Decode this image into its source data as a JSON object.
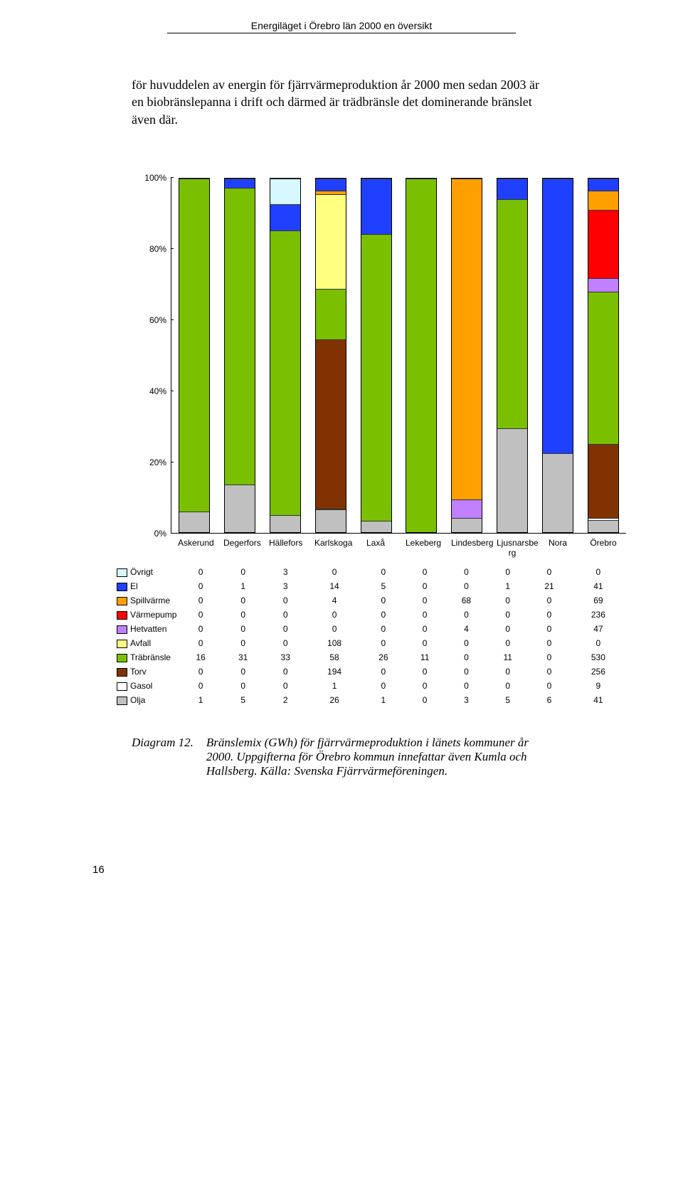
{
  "header": "Energiläget i Örebro län 2000 en översikt",
  "body_text": "för huvuddelen av energin för fjärrvärmeproduktion år 2000 men sedan 2003 är en biobränslepanna i drift och därmed är trädbränsle det dominerande bränslet även där.",
  "caption_lead": "Diagram 12.",
  "caption_text": "Bränslemix (GWh) för fjärrvärmeproduktion i länets kommuner år 2000. Uppgifterna för Örebro kommun innefattar även Kumla och Hallsberg. Källa: Svenska Fjärrvärmeföreningen.",
  "page_number": "16",
  "chart": {
    "type": "stacked-bar",
    "y_ticks": [
      "0%",
      "20%",
      "40%",
      "60%",
      "80%",
      "100%"
    ],
    "categories": [
      "Askerund",
      "Degerfors",
      "Hällefors",
      "Karlskoga",
      "Laxå",
      "Lekeberg",
      "Lindesberg",
      "Ljusnarsbe rg",
      "Nora",
      "Örebro"
    ],
    "series": [
      {
        "name": "Olja",
        "color": "#c0c0c0",
        "data": [
          1,
          5,
          2,
          26,
          1,
          0,
          3,
          5,
          6,
          41
        ]
      },
      {
        "name": "Gasol",
        "color": "#ffffff",
        "data": [
          0,
          0,
          0,
          1,
          0,
          0,
          0,
          0,
          0,
          9
        ]
      },
      {
        "name": "Torv",
        "color": "#803300",
        "data": [
          0,
          0,
          0,
          194,
          0,
          0,
          0,
          0,
          0,
          256
        ]
      },
      {
        "name": "Träbränsle",
        "color": "#7ac000",
        "data": [
          16,
          31,
          33,
          58,
          26,
          11,
          0,
          11,
          0,
          530
        ]
      },
      {
        "name": "Avfall",
        "color": "#ffff80",
        "data": [
          0,
          0,
          0,
          108,
          0,
          0,
          0,
          0,
          0,
          0
        ]
      },
      {
        "name": "Hetvatten",
        "color": "#c080ff",
        "data": [
          0,
          0,
          0,
          0,
          0,
          0,
          4,
          0,
          0,
          47
        ]
      },
      {
        "name": "Värmepump",
        "color": "#ff0000",
        "data": [
          0,
          0,
          0,
          0,
          0,
          0,
          0,
          0,
          0,
          236
        ]
      },
      {
        "name": "Spillvärme",
        "color": "#ffa000",
        "data": [
          0,
          0,
          0,
          4,
          0,
          0,
          68,
          0,
          0,
          69
        ]
      },
      {
        "name": "El",
        "color": "#2040ff",
        "data": [
          0,
          1,
          3,
          14,
          5,
          0,
          0,
          1,
          21,
          41
        ]
      },
      {
        "name": "Övrigt",
        "color": "#d8f8ff",
        "data": [
          0,
          0,
          3,
          0,
          0,
          0,
          0,
          0,
          0,
          0
        ]
      }
    ],
    "table_order": [
      "Övrigt",
      "El",
      "Spillvärme",
      "Värmepump",
      "Hetvatten",
      "Avfall",
      "Träbränsle",
      "Torv",
      "Gasol",
      "Olja"
    ],
    "fontsize": 12,
    "grid_color": "#000000",
    "background_color": "#ffffff"
  }
}
